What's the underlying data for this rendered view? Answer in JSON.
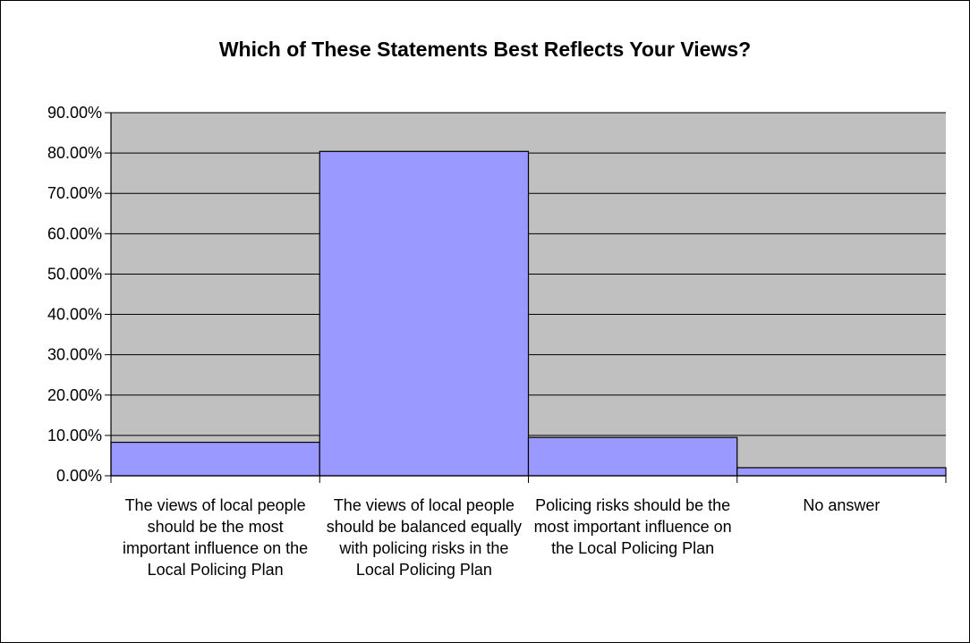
{
  "chart_data": {
    "type": "bar",
    "title": "Which of These Statements Best Reflects Your Views?",
    "categories": [
      "The views of local people should be the most important influence on the Local Policing Plan",
      "The views of local people should be balanced equally with policing risks in the Local Policing Plan",
      "Policing risks should be the most important influence on the Local Policing Plan",
      "No answer"
    ],
    "values": [
      8.3,
      80.4,
      9.5,
      2.0
    ],
    "ylim": [
      0,
      90
    ],
    "yticks": [
      "0.00%",
      "10.00%",
      "20.00%",
      "30.00%",
      "40.00%",
      "50.00%",
      "60.00%",
      "70.00%",
      "80.00%",
      "90.00%"
    ],
    "xlabel": "",
    "ylabel": "",
    "grid": true,
    "legend": "none",
    "colors": {
      "plot_background": "#c0c0c0",
      "bar_fill": "#9999ff",
      "bar_stroke": "#000000",
      "gridline": "#000000"
    }
  }
}
